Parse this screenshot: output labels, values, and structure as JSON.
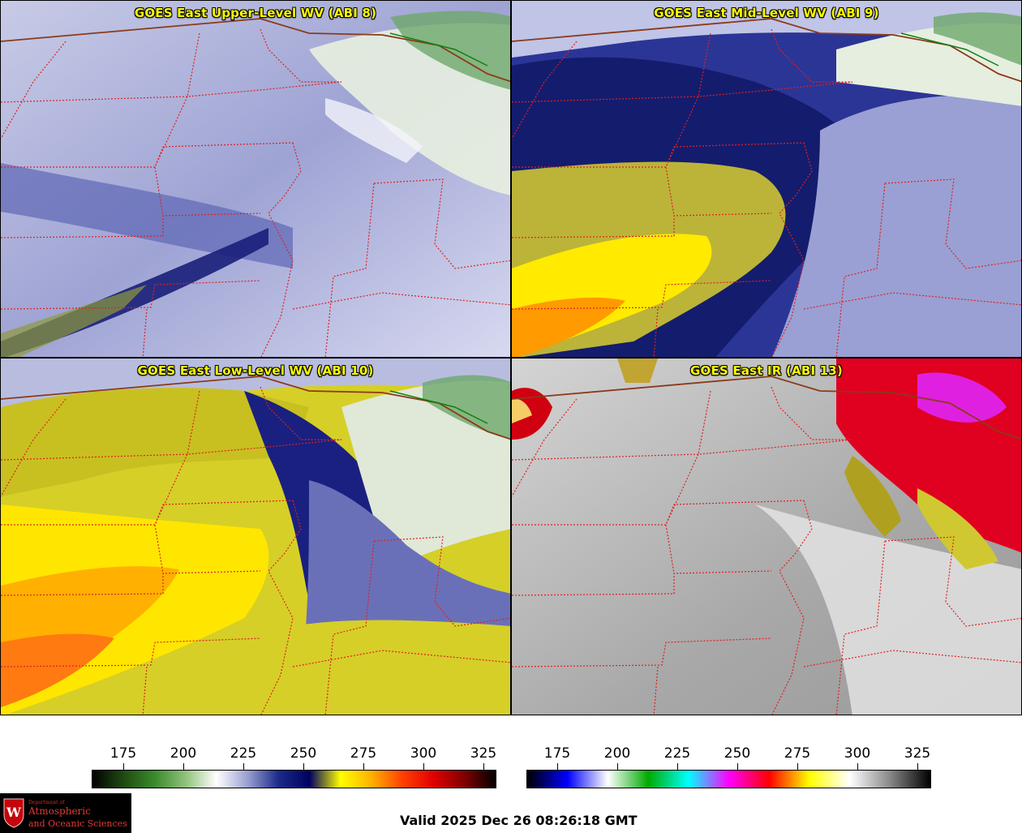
{
  "panels": [
    {
      "id": "abi8",
      "title": "GOES East Upper-Level WV (ABI 8)"
    },
    {
      "id": "abi9",
      "title": "GOES East Mid-Level WV (ABI 9)"
    },
    {
      "id": "abi10",
      "title": "GOES East Low-Level WV (ABI 10)"
    },
    {
      "id": "abi13",
      "title": "GOES East IR (ABI 13)"
    }
  ],
  "colorbars": [
    {
      "id": "wv-colorbar",
      "ticks": [
        "175",
        "200",
        "225",
        "250",
        "275",
        "300",
        "325"
      ],
      "colors": [
        "#000000",
        "#1f4a12",
        "#3a8a2a",
        "#8fc27a",
        "#ffffff",
        "#9aa0d0",
        "#1c2a8a",
        "#000060",
        "#ffff00",
        "#ffb000",
        "#ff4000",
        "#e00000",
        "#800000",
        "#000000"
      ]
    },
    {
      "id": "ir-colorbar",
      "ticks": [
        "175",
        "200",
        "225",
        "250",
        "275",
        "300",
        "325"
      ],
      "colors": [
        "#000000",
        "#0000ff",
        "#ffffff",
        "#00aa00",
        "#00ffff",
        "#ff00ff",
        "#ff0000",
        "#ffff00",
        "#ffffff",
        "#888888",
        "#000000"
      ]
    }
  ],
  "logo": {
    "dept": "Department of",
    "line1": "Atmospheric",
    "line2": "and Oceanic Sciences",
    "shield_letter": "W"
  },
  "footer": {
    "valid": "Valid 2025 Dec 26 08:26:18 GMT"
  },
  "colors": {
    "title_text": "#ffff00",
    "state_borders": "#e02020",
    "country_border": "#8b3a1a",
    "coast": "#108010"
  }
}
